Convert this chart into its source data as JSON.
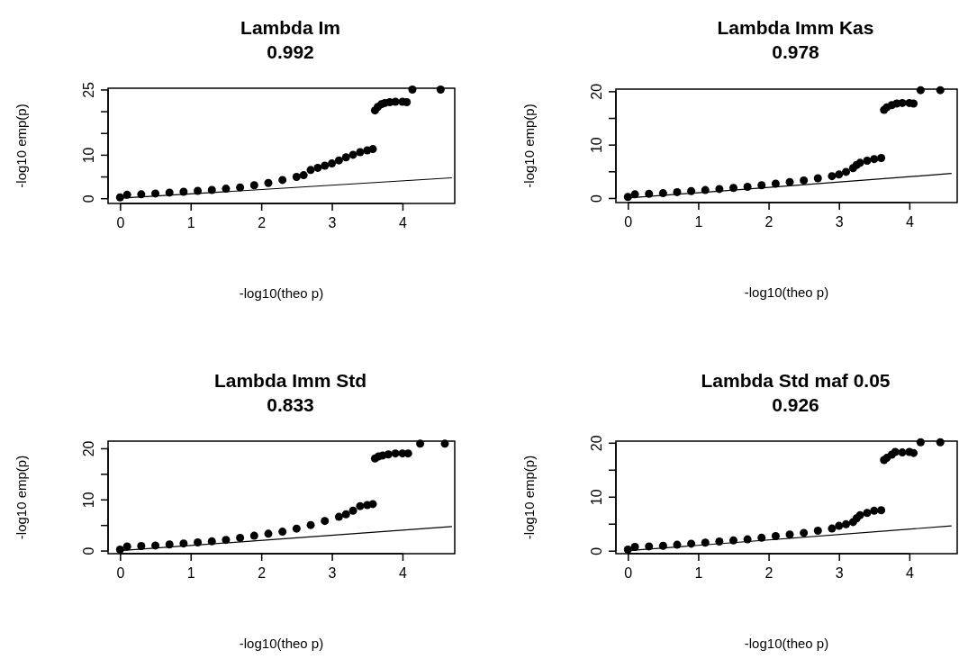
{
  "chart_data": [
    {
      "type": "scatter",
      "title": "Lambda Im",
      "subtitle": "0.992",
      "xlabel": "-log10(theo p)",
      "ylabel": "-log10 emp(p)",
      "xlim": [
        -0.17,
        4.74
      ],
      "ylim": [
        -1.2,
        25.3
      ],
      "xticks": [
        0,
        1,
        2,
        3,
        4
      ],
      "yticks": [
        0,
        {
          "value": 5,
          "label": null
        },
        10,
        {
          "value": 15,
          "label": null
        },
        {
          "value": 20,
          "label": null
        },
        25
      ],
      "grid": false,
      "series": [
        {
          "color": "#000000",
          "marker": "circle",
          "x": [
            0,
            0.1,
            0.3,
            0.5,
            0.7,
            0.9,
            1.1,
            1.3,
            1.5,
            1.7,
            1.9,
            2.1,
            2.3,
            2.5,
            2.6,
            2.7,
            2.8,
            2.9,
            3.0,
            3.1,
            3.2,
            3.3,
            3.4,
            3.5,
            3.58,
            3.61,
            3.65,
            3.7,
            3.75,
            3.82,
            3.9,
            4.0,
            4.06,
            4.14,
            4.54
          ],
          "values": [
            0.2,
            0.8,
            0.9,
            1.1,
            1.3,
            1.5,
            1.7,
            1.9,
            2.2,
            2.5,
            3.0,
            3.5,
            4.2,
            4.9,
            5.3,
            6.5,
            7.0,
            7.5,
            8.0,
            8.7,
            9.4,
            10.0,
            10.6,
            11.0,
            11.3,
            20.2,
            21.0,
            21.6,
            21.9,
            22.1,
            22.2,
            22.2,
            22.1,
            25.0,
            25.0
          ]
        },
        {
          "type": "line",
          "color": "#000000",
          "x": [
            0,
            4.7
          ],
          "values": [
            0,
            4.7
          ]
        }
      ]
    },
    {
      "type": "scatter",
      "title": "Lambda Imm Kas",
      "subtitle": "0.978",
      "xlabel": "-log10(theo p)",
      "ylabel": "-log10 emp(p)",
      "xlim": [
        -0.17,
        4.68
      ],
      "ylim": [
        -0.85,
        20.4
      ],
      "xticks": [
        0,
        1,
        2,
        3,
        4
      ],
      "yticks": [
        0,
        {
          "value": 5,
          "label": null
        },
        10,
        {
          "value": 15,
          "label": null
        },
        20
      ],
      "grid": false,
      "series": [
        {
          "color": "#000000",
          "marker": "circle",
          "x": [
            0,
            0.1,
            0.3,
            0.5,
            0.7,
            0.9,
            1.1,
            1.3,
            1.5,
            1.7,
            1.9,
            2.1,
            2.3,
            2.5,
            2.7,
            2.9,
            3.0,
            3.1,
            3.2,
            3.25,
            3.3,
            3.4,
            3.5,
            3.6,
            3.64,
            3.68,
            3.75,
            3.82,
            3.9,
            4.0,
            4.06,
            4.16,
            4.44
          ],
          "values": [
            0.2,
            0.7,
            0.8,
            0.9,
            1.1,
            1.3,
            1.5,
            1.7,
            1.9,
            2.1,
            2.4,
            2.7,
            3.0,
            3.3,
            3.7,
            4.1,
            4.4,
            4.9,
            5.6,
            6.2,
            6.6,
            7.0,
            7.3,
            7.5,
            16.5,
            17.0,
            17.4,
            17.7,
            17.8,
            17.8,
            17.7,
            20.2,
            20.2
          ]
        },
        {
          "type": "line",
          "color": "#000000",
          "x": [
            0,
            4.6
          ],
          "values": [
            0,
            4.6
          ]
        }
      ]
    },
    {
      "type": "scatter",
      "title": "Lambda Imm Std",
      "subtitle": "0.833",
      "xlabel": "-log10(theo p)",
      "ylabel": "-log10 emp(p)",
      "xlim": [
        -0.17,
        4.74
      ],
      "ylim": [
        -0.6,
        21.4
      ],
      "xticks": [
        0,
        1,
        2,
        3,
        4
      ],
      "yticks": [
        0,
        {
          "value": 5,
          "label": null
        },
        10,
        {
          "value": 15,
          "label": null
        },
        20
      ],
      "grid": false,
      "series": [
        {
          "color": "#000000",
          "marker": "circle",
          "x": [
            0,
            0.1,
            0.3,
            0.5,
            0.7,
            0.9,
            1.1,
            1.3,
            1.5,
            1.7,
            1.9,
            2.1,
            2.3,
            2.5,
            2.7,
            2.9,
            3.1,
            3.2,
            3.3,
            3.4,
            3.5,
            3.58,
            3.61,
            3.66,
            3.72,
            3.8,
            3.9,
            4.0,
            4.08,
            4.25,
            4.6
          ],
          "values": [
            0.2,
            0.8,
            0.9,
            1.0,
            1.2,
            1.4,
            1.6,
            1.8,
            2.1,
            2.5,
            2.9,
            3.3,
            3.7,
            4.3,
            5.0,
            5.8,
            6.6,
            7.1,
            7.8,
            8.7,
            8.9,
            9.1,
            18.0,
            18.4,
            18.6,
            18.8,
            19.0,
            19.0,
            19.0,
            20.9,
            20.9
          ]
        },
        {
          "type": "line",
          "color": "#000000",
          "x": [
            0,
            4.7
          ],
          "values": [
            0,
            4.7
          ]
        }
      ]
    },
    {
      "type": "scatter",
      "title": "Lambda Std maf 0.05",
      "subtitle": "0.926",
      "xlabel": "-log10(theo p)",
      "ylabel": "-log10 emp(p)",
      "xlim": [
        -0.17,
        4.68
      ],
      "ylim": [
        -0.55,
        20.3
      ],
      "xticks": [
        0,
        1,
        2,
        3,
        4
      ],
      "yticks": [
        0,
        {
          "value": 5,
          "label": null
        },
        10,
        {
          "value": 15,
          "label": null
        },
        20
      ],
      "grid": false,
      "series": [
        {
          "color": "#000000",
          "marker": "circle",
          "x": [
            0,
            0.1,
            0.3,
            0.5,
            0.7,
            0.9,
            1.1,
            1.3,
            1.5,
            1.7,
            1.9,
            2.1,
            2.3,
            2.5,
            2.7,
            2.9,
            3.0,
            3.1,
            3.2,
            3.25,
            3.3,
            3.4,
            3.5,
            3.6,
            3.64,
            3.68,
            3.75,
            3.8,
            3.9,
            4.0,
            4.06,
            4.16,
            4.44
          ],
          "values": [
            0.2,
            0.7,
            0.8,
            0.9,
            1.1,
            1.3,
            1.5,
            1.7,
            1.9,
            2.1,
            2.4,
            2.7,
            3.0,
            3.3,
            3.7,
            4.1,
            4.6,
            4.9,
            5.3,
            6.0,
            6.6,
            7.0,
            7.4,
            7.5,
            16.8,
            17.2,
            17.8,
            18.3,
            18.2,
            18.3,
            18.1,
            20.1,
            20.1
          ]
        },
        {
          "type": "line",
          "color": "#000000",
          "x": [
            0,
            4.6
          ],
          "values": [
            0,
            4.6
          ]
        }
      ]
    }
  ]
}
